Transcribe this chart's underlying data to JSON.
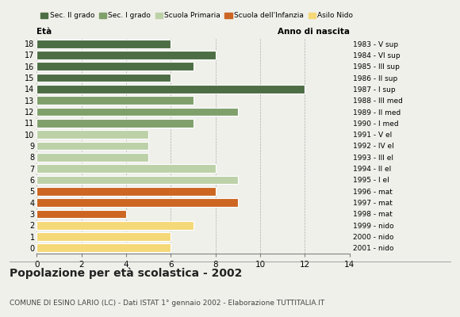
{
  "ages": [
    18,
    17,
    16,
    15,
    14,
    13,
    12,
    11,
    10,
    9,
    8,
    7,
    6,
    5,
    4,
    3,
    2,
    1,
    0
  ],
  "values": [
    6,
    8,
    7,
    6,
    12,
    7,
    9,
    7,
    5,
    5,
    5,
    8,
    9,
    8,
    9,
    4,
    7,
    6,
    6
  ],
  "categories": {
    "Sec. II grado": {
      "ages": [
        14,
        15,
        16,
        17,
        18
      ],
      "color": "#4d6e44"
    },
    "Sec. I grado": {
      "ages": [
        11,
        12,
        13
      ],
      "color": "#7fa06b"
    },
    "Scuola Primaria": {
      "ages": [
        6,
        7,
        8,
        9,
        10
      ],
      "color": "#bdd1a8"
    },
    "Scuola dell'Infanzia": {
      "ages": [
        3,
        4,
        5
      ],
      "color": "#cc6622"
    },
    "Asilo Nido": {
      "ages": [
        0,
        1,
        2
      ],
      "color": "#f5d878"
    }
  },
  "anno_nascita": {
    "18": "1983 - V sup",
    "17": "1984 - VI sup",
    "16": "1985 - III sup",
    "15": "1986 - II sup",
    "14": "1987 - I sup",
    "13": "1988 - III med",
    "12": "1989 - II med",
    "11": "1990 - I med",
    "10": "1991 - V el",
    "9": "1992 - IV el",
    "8": "1993 - III el",
    "7": "1994 - II el",
    "6": "1995 - I el",
    "5": "1996 - mat",
    "4": "1997 - mat",
    "3": "1998 - mat",
    "2": "1999 - nido",
    "1": "2000 - nido",
    "0": "2001 - nido"
  },
  "title": "Popolazione per età scolastica - 2002",
  "subtitle": "COMUNE DI ESINO LARIO (LC) - Dati ISTAT 1° gennaio 2002 - Elaborazione TUTTITALIA.IT",
  "xlim": [
    0,
    14
  ],
  "xticks": [
    0,
    2,
    4,
    6,
    8,
    10,
    12,
    14
  ],
  "xlabel_eta": "Età",
  "xlabel_anno": "Anno di nascita",
  "background_color": "#f0f0eb",
  "legend_order": [
    "Sec. II grado",
    "Sec. I grado",
    "Scuola Primaria",
    "Scuola dell'Infanzia",
    "Asilo Nido"
  ]
}
